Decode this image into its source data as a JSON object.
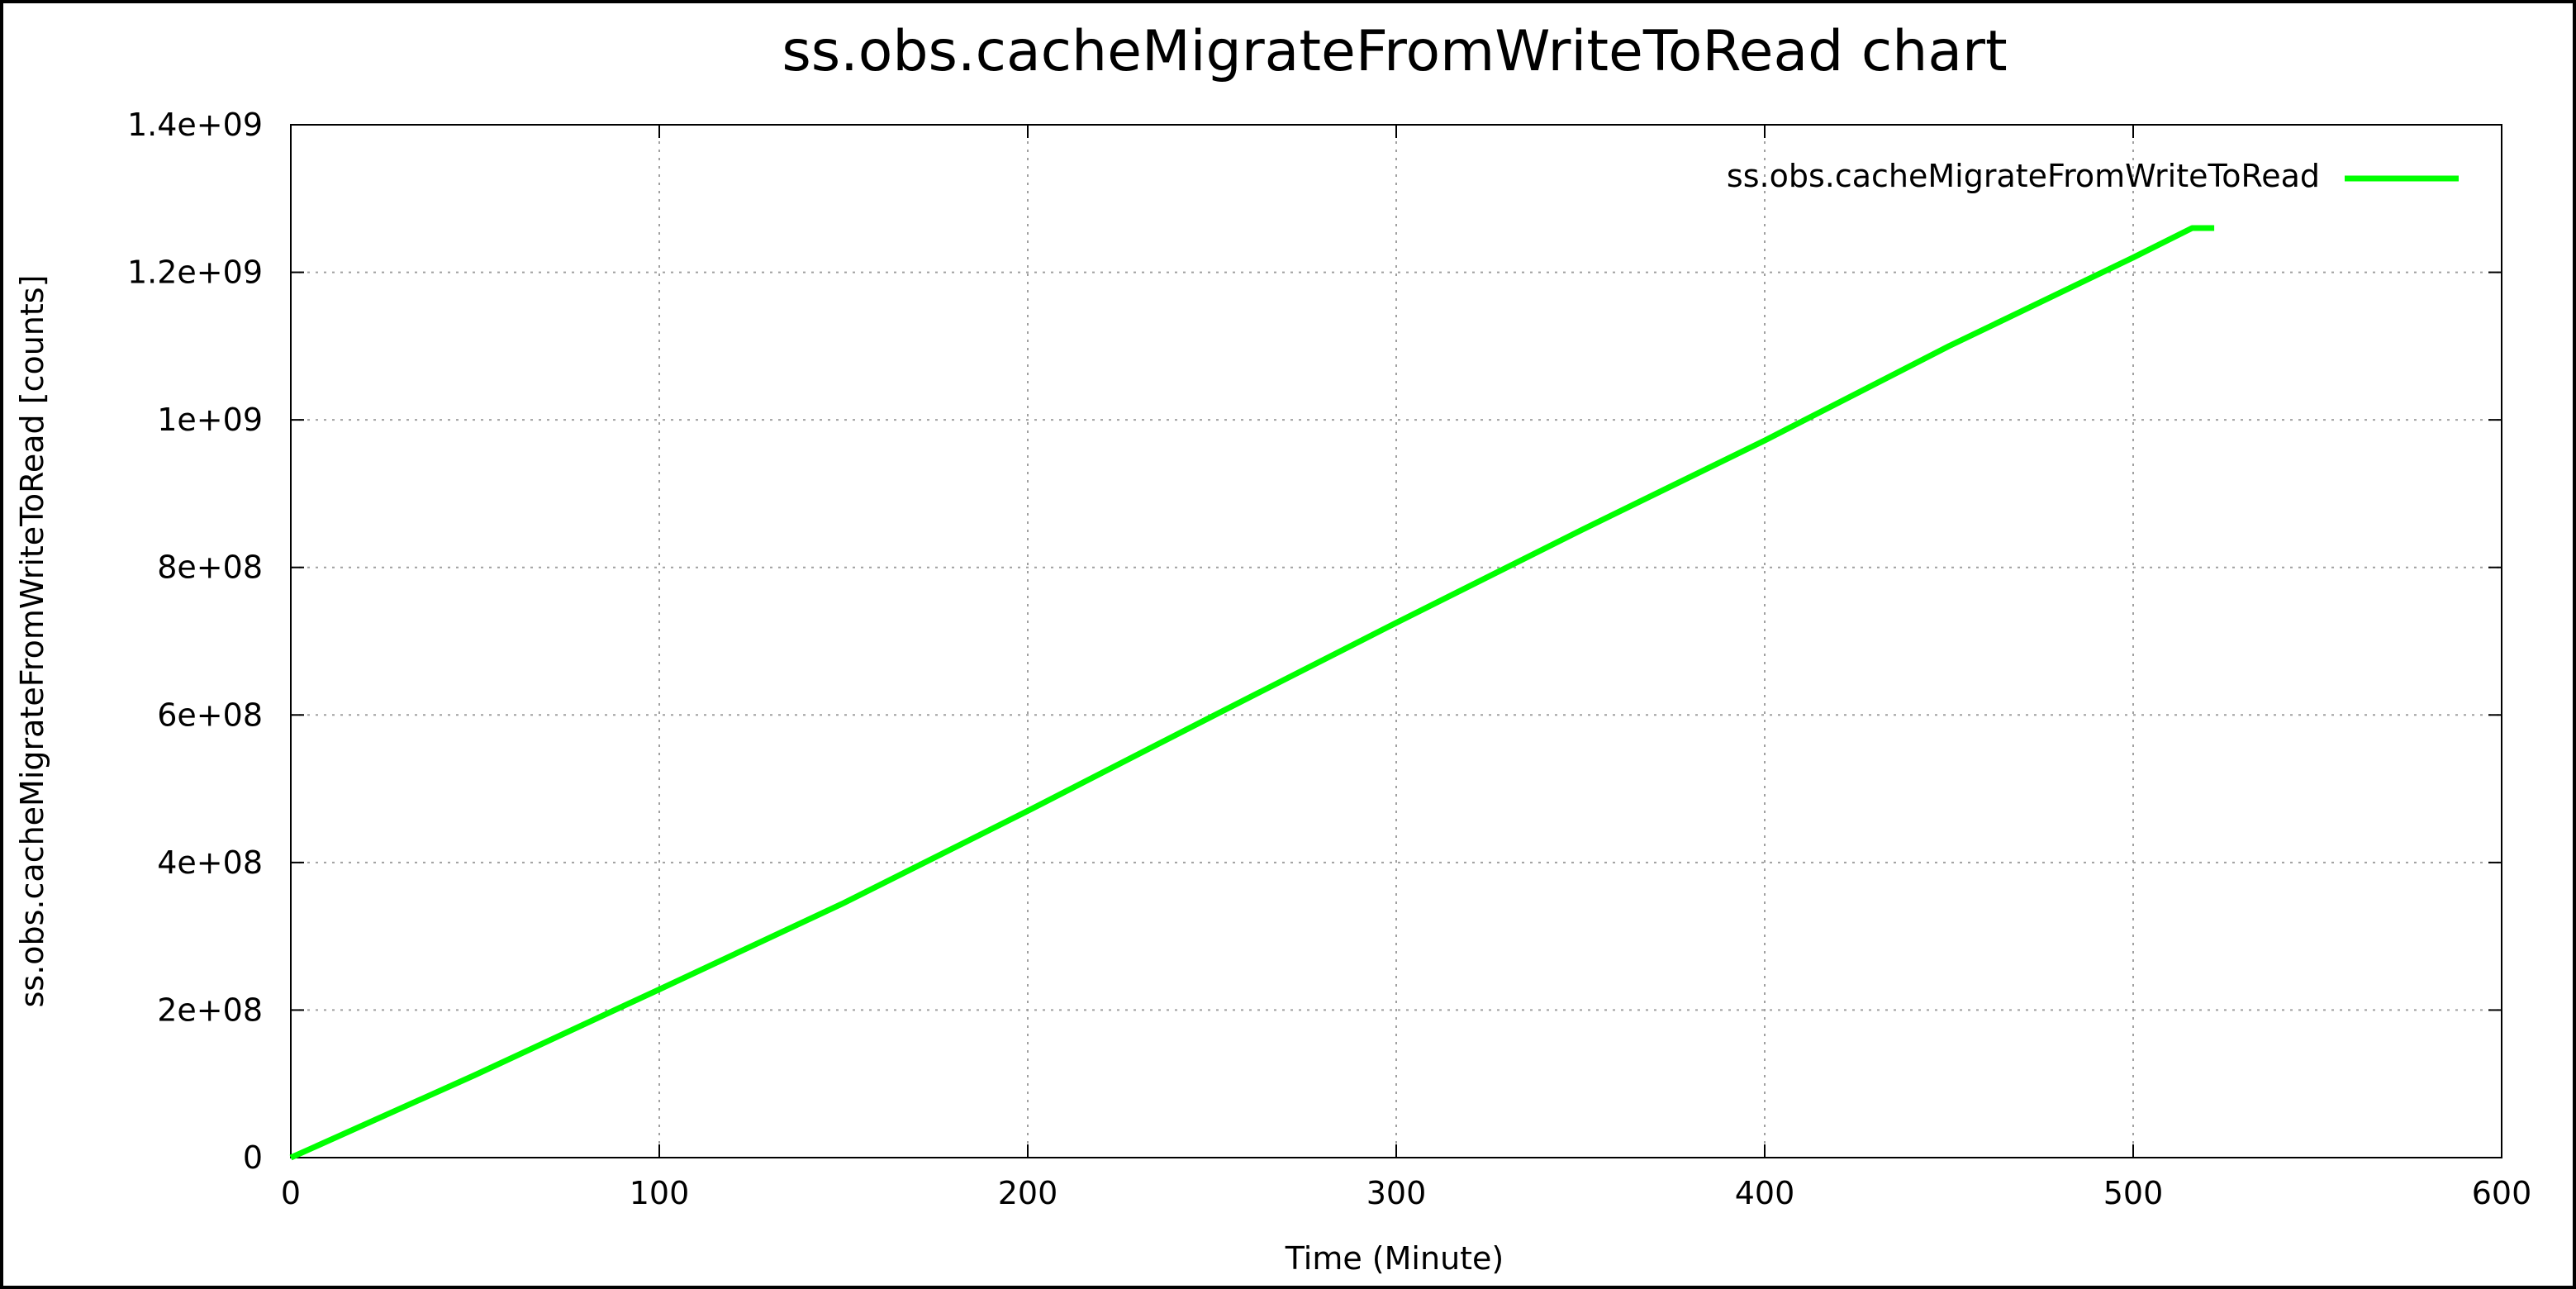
{
  "chart_data": {
    "type": "line",
    "title": "ss.obs.cacheMigrateFromWriteToRead chart",
    "xlabel": "Time (Minute)",
    "ylabel": "ss.obs.cacheMigrateFromWriteToRead [counts]",
    "xlim": [
      0,
      600
    ],
    "ylim": [
      0,
      1400000000
    ],
    "x_ticks": [
      0,
      100,
      200,
      300,
      400,
      500,
      600
    ],
    "x_tick_labels": [
      "0",
      "100",
      "200",
      "300",
      "400",
      "500",
      "600"
    ],
    "y_ticks": [
      0,
      200000000,
      400000000,
      600000000,
      800000000,
      1000000000,
      1200000000,
      1400000000
    ],
    "y_tick_labels": [
      "0",
      "2e+08",
      "4e+08",
      "6e+08",
      "8e+08",
      "1e+09",
      "1.2e+09",
      "1.4e+09"
    ],
    "grid": true,
    "legend_position": "top-right",
    "series": [
      {
        "name": "ss.obs.cacheMigrateFromWriteToRead",
        "color": "#00ff00",
        "x": [
          0,
          50,
          100,
          150,
          200,
          250,
          300,
          350,
          400,
          450,
          500,
          516,
          522
        ],
        "y": [
          0,
          112000000,
          228000000,
          345000000,
          470000000,
          598000000,
          725000000,
          850000000,
          972000000,
          1100000000,
          1220000000,
          1260000000,
          1260000000
        ]
      }
    ]
  }
}
